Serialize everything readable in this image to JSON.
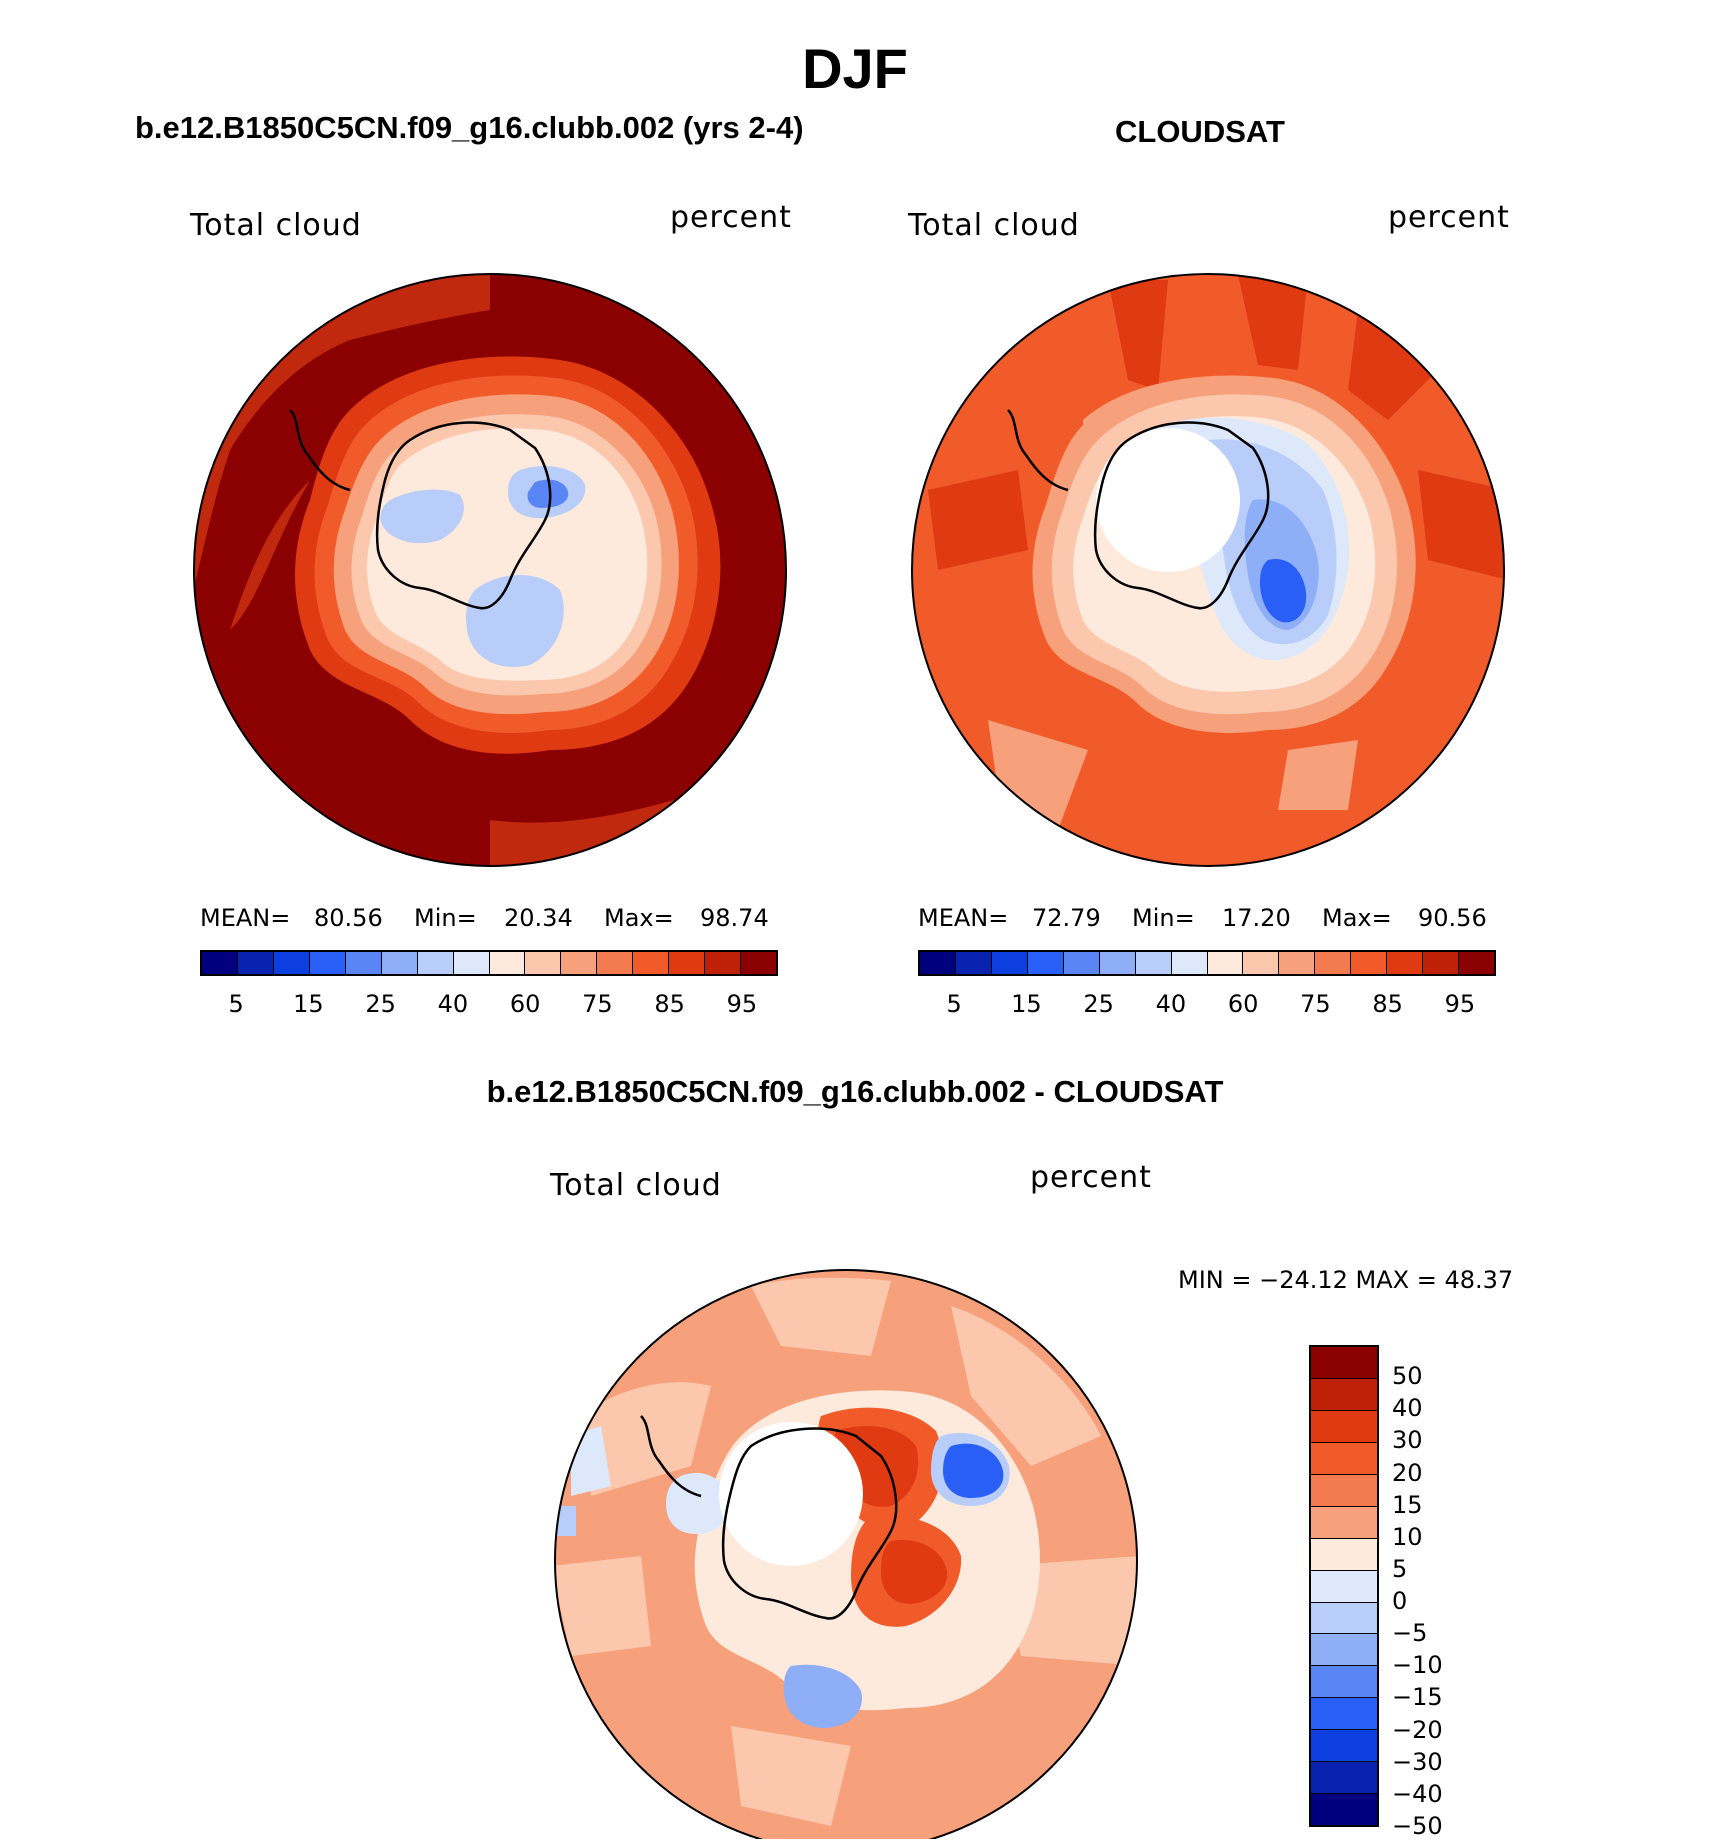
{
  "title": "DJF",
  "panels": {
    "model": {
      "title": "b.e12.B1850C5CN.f09_g16.clubb.002 (yrs 2-4)",
      "left_label": "Total cloud",
      "right_label": "percent",
      "stats": {
        "mean_label": "MEAN=",
        "mean": "80.56",
        "min_label": "Min=",
        "min": "20.34",
        "max_label": "Max=",
        "max": "98.74"
      }
    },
    "obs": {
      "title": "CLOUDSAT",
      "left_label": "Total cloud",
      "right_label": "percent",
      "stats": {
        "mean_label": "MEAN=",
        "mean": "72.79",
        "min_label": "Min=",
        "min": "17.20",
        "max_label": "Max=",
        "max": "90.56"
      }
    },
    "diff": {
      "title": "b.e12.B1850C5CN.f09_g16.clubb.002 - CLOUDSAT",
      "left_label": "Total cloud",
      "right_label": "percent",
      "minmax": "MIN = −24.12 MAX =   48.37"
    }
  },
  "colorbar_abs": {
    "colors": [
      "#00007f",
      "#0a22b0",
      "#0d3fe0",
      "#2a5ff5",
      "#5a86f5",
      "#8eaef7",
      "#b8cdf9",
      "#dde8fb",
      "#fdeadc",
      "#fbc8ad",
      "#f7a07c",
      "#f47b4f",
      "#f15a29",
      "#e03a12",
      "#bf2008",
      "#8b0000"
    ],
    "tick_labels": [
      "5",
      "15",
      "25",
      "40",
      "60",
      "75",
      "85",
      "95"
    ]
  },
  "colorbar_diff": {
    "colors": [
      "#8b0000",
      "#bf2008",
      "#e03a12",
      "#f15a29",
      "#f47b4f",
      "#f7a07c",
      "#fdeadc",
      "#dde8fb",
      "#b8cdf9",
      "#8eaef7",
      "#5a86f5",
      "#2a5ff5",
      "#0d3fe0",
      "#0a22b0",
      "#00007f"
    ],
    "tick_labels": [
      "50",
      "40",
      "30",
      "20",
      "15",
      "10",
      "5",
      "0",
      "−5",
      "−10",
      "−15",
      "−20",
      "−30",
      "−40",
      "−50"
    ]
  },
  "map_colors": {
    "dark_red": "#8b0000",
    "red": "#c0290e",
    "red_orange": "#e03a12",
    "orange": "#f15a29",
    "light_orange": "#f7a07c",
    "peach": "#fbc8ad",
    "cream": "#fdeadc",
    "pale_blue": "#dde8fb",
    "light_blue": "#b8cdf9",
    "mid_blue": "#8eaef7",
    "blue": "#5a86f5",
    "deep_blue": "#2a5ff5"
  }
}
